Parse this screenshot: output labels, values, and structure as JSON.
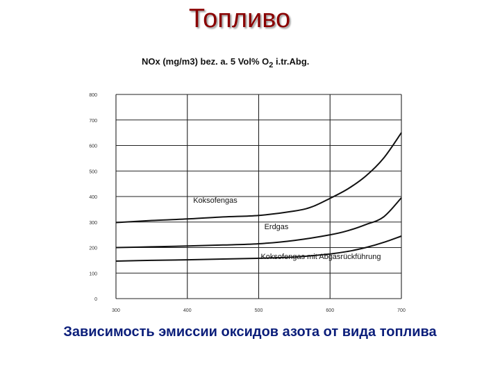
{
  "slide": {
    "title": "Топливо",
    "caption": "Зависимость эмиссии оксидов азота от вида топлива"
  },
  "chart_data": {
    "type": "line",
    "title_parts": {
      "before_o2": "NOx (mg/m3) bez. a. 5 Vol% O",
      "subscript": "2",
      "after_o2": " i.tr.Abg."
    },
    "xlabel": "",
    "ylabel": "",
    "x_ticks": [
      "300",
      "400",
      "500",
      "600",
      "700"
    ],
    "y_ticks": [
      "0",
      "100",
      "200",
      "300",
      "400",
      "500",
      "600",
      "700",
      "800"
    ],
    "xlim": [
      300,
      700
    ],
    "ylim": [
      0,
      800
    ],
    "grid": true,
    "series": [
      {
        "name": "Koksofengas",
        "x": [
          300,
          350,
          400,
          450,
          500,
          550,
          575,
          600,
          625,
          650,
          675,
          700
        ],
        "y": [
          298,
          306,
          312,
          320,
          326,
          343,
          360,
          393,
          430,
          480,
          550,
          650
        ]
      },
      {
        "name": "Erdgas",
        "x": [
          300,
          350,
          400,
          450,
          500,
          550,
          600,
          625,
          650,
          675,
          700
        ],
        "y": [
          200,
          203,
          206,
          210,
          215,
          228,
          250,
          266,
          290,
          320,
          395
        ]
      },
      {
        "name": "Koksofengas mit Abgasrückführung",
        "x": [
          300,
          350,
          400,
          450,
          500,
          550,
          600,
          625,
          650,
          675,
          700
        ],
        "y": [
          147,
          150,
          152,
          155,
          158,
          163,
          175,
          185,
          200,
          220,
          245
        ]
      }
    ]
  }
}
